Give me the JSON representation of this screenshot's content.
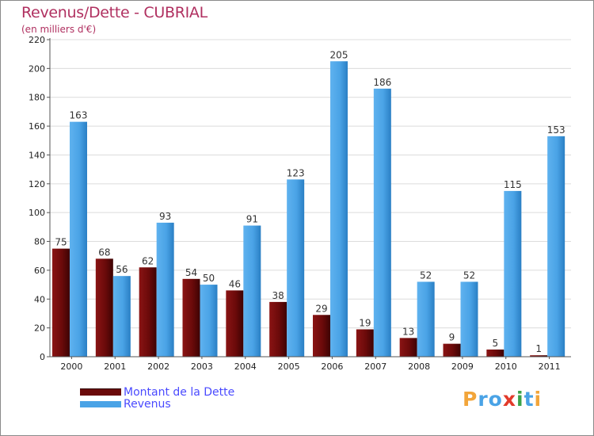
{
  "header": {
    "title": "Revenus/Dette - CUBRIAL",
    "subtitle": "(en milliers d'€)"
  },
  "legend": {
    "items": [
      {
        "label": "Montant de la Dette",
        "color": "#6b0a0a"
      },
      {
        "label": "Revenus",
        "color": "#4aa3e6"
      }
    ]
  },
  "logo": {
    "text": "Proxiti",
    "letters": [
      {
        "ch": "P",
        "color": "#f2a53a"
      },
      {
        "ch": "r",
        "color": "#4aa3e6"
      },
      {
        "ch": "o",
        "color": "#4aa3e6"
      },
      {
        "ch": "x",
        "color": "#e23a2a"
      },
      {
        "ch": "i",
        "color": "#3aa34a"
      },
      {
        "ch": "t",
        "color": "#4aa3e6"
      },
      {
        "ch": "i",
        "color": "#f2a53a"
      }
    ]
  },
  "chart_data": {
    "type": "bar",
    "title": "Revenus/Dette - CUBRIAL",
    "ylabel": "(en milliers d'€)",
    "xlabel": "",
    "categories": [
      "2000",
      "2001",
      "2002",
      "2003",
      "2004",
      "2005",
      "2006",
      "2007",
      "2008",
      "2009",
      "2010",
      "2011"
    ],
    "series": [
      {
        "name": "Montant de la Dette",
        "color": "#6b0a0a",
        "values": [
          75,
          68,
          62,
          54,
          46,
          38,
          29,
          19,
          13,
          9,
          5,
          1
        ]
      },
      {
        "name": "Revenus",
        "color": "#4aa3e6",
        "values": [
          163,
          56,
          93,
          50,
          91,
          123,
          205,
          186,
          52,
          52,
          115,
          153
        ]
      }
    ],
    "ylim": [
      0,
      220
    ],
    "yticks": [
      0,
      20,
      40,
      60,
      80,
      100,
      120,
      140,
      160,
      180,
      200,
      220
    ],
    "grid": true,
    "legend": "bottom-left"
  }
}
